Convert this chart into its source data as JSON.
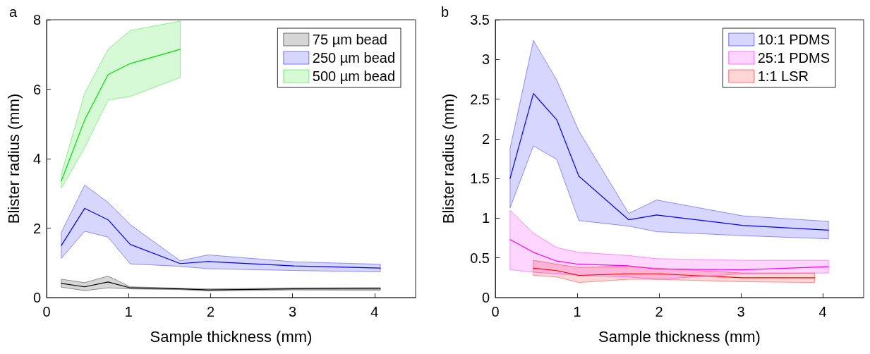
{
  "chart_data": [
    {
      "type": "line",
      "title": "a",
      "xlabel": "Sample thickness (mm)",
      "ylabel": "Blister radius (mm)",
      "xlim": [
        0,
        4.5
      ],
      "xticks": [
        0,
        1,
        2,
        3,
        4
      ],
      "ylim": [
        0,
        8
      ],
      "yticks": [
        0,
        2,
        4,
        6,
        8
      ],
      "legend": "top right",
      "grid": false,
      "marker": "none",
      "line_style": "solid",
      "series": [
        {
          "name": "75 µm bead",
          "color": "#000000",
          "x": [
            0.18,
            0.465,
            0.75,
            1.02,
            1.63,
            1.97,
            3.02,
            4.07
          ],
          "values": [
            0.41,
            0.31,
            0.45,
            0.28,
            0.25,
            0.22,
            0.25,
            0.25
          ],
          "lower": [
            0.3,
            0.2,
            0.28,
            0.25,
            0.23,
            0.19,
            0.22,
            0.21
          ],
          "upper": [
            0.53,
            0.43,
            0.62,
            0.31,
            0.27,
            0.25,
            0.28,
            0.29
          ]
        },
        {
          "name": "250 µm bead",
          "color": "#0000ff",
          "x": [
            0.18,
            0.465,
            0.75,
            1.02,
            1.63,
            1.97,
            3.02,
            4.07
          ],
          "values": [
            1.5,
            2.57,
            2.24,
            1.53,
            0.98,
            1.04,
            0.91,
            0.85
          ],
          "lower": [
            1.13,
            1.91,
            1.74,
            0.97,
            0.9,
            0.83,
            0.78,
            0.74
          ],
          "upper": [
            1.88,
            3.24,
            2.74,
            2.1,
            1.06,
            1.23,
            1.03,
            0.96
          ]
        },
        {
          "name": "500 µm bead",
          "color": "#00e000",
          "x": [
            0.18,
            0.465,
            0.75,
            1.02,
            1.63
          ],
          "values": [
            3.36,
            5.12,
            6.42,
            6.74,
            7.15
          ],
          "lower": [
            3.15,
            4.32,
            5.69,
            5.79,
            6.34
          ],
          "upper": [
            3.56,
            5.89,
            7.15,
            7.69,
            7.96
          ]
        }
      ]
    },
    {
      "type": "line",
      "title": "b",
      "xlabel": "Sample thickness (mm)",
      "ylabel": "Blister radius (mm)",
      "xlim": [
        0,
        4.5
      ],
      "xticks": [
        0,
        1,
        2,
        3,
        4
      ],
      "ylim": [
        0,
        3.5
      ],
      "yticks": [
        0,
        0.5,
        1,
        1.5,
        2,
        2.5,
        3,
        3.5
      ],
      "legend": "top right",
      "grid": false,
      "marker": "none",
      "line_style": "solid",
      "series": [
        {
          "name": "10:1 PDMS",
          "color": "#0000ff",
          "x": [
            0.18,
            0.465,
            0.75,
            1.02,
            1.63,
            1.97,
            3.02,
            4.07
          ],
          "values": [
            1.5,
            2.57,
            2.24,
            1.53,
            0.98,
            1.04,
            0.91,
            0.85
          ],
          "lower": [
            1.13,
            1.91,
            1.74,
            0.97,
            0.9,
            0.83,
            0.78,
            0.74
          ],
          "upper": [
            1.88,
            3.24,
            2.74,
            2.1,
            1.06,
            1.23,
            1.03,
            0.96
          ]
        },
        {
          "name": "25:1 PDMS",
          "color": "#ff00ff",
          "x": [
            0.18,
            0.465,
            0.75,
            1.02,
            1.63,
            1.97,
            3.02,
            4.07
          ],
          "values": [
            0.73,
            0.57,
            0.46,
            0.42,
            0.4,
            0.36,
            0.35,
            0.39
          ],
          "lower": [
            0.35,
            0.32,
            0.3,
            0.28,
            0.26,
            0.23,
            0.3,
            0.31
          ],
          "upper": [
            1.1,
            0.81,
            0.63,
            0.57,
            0.53,
            0.49,
            0.47,
            0.47
          ]
        },
        {
          "name": "1:1 LSR",
          "color": "#ff0000",
          "x": [
            0.465,
            0.75,
            1.02,
            1.63,
            1.97,
            3.02,
            3.9
          ],
          "values": [
            0.37,
            0.34,
            0.28,
            0.3,
            0.3,
            0.25,
            0.25
          ],
          "lower": [
            0.28,
            0.26,
            0.19,
            0.23,
            0.23,
            0.2,
            0.19
          ],
          "upper": [
            0.47,
            0.42,
            0.38,
            0.39,
            0.37,
            0.31,
            0.31
          ]
        }
      ]
    }
  ]
}
